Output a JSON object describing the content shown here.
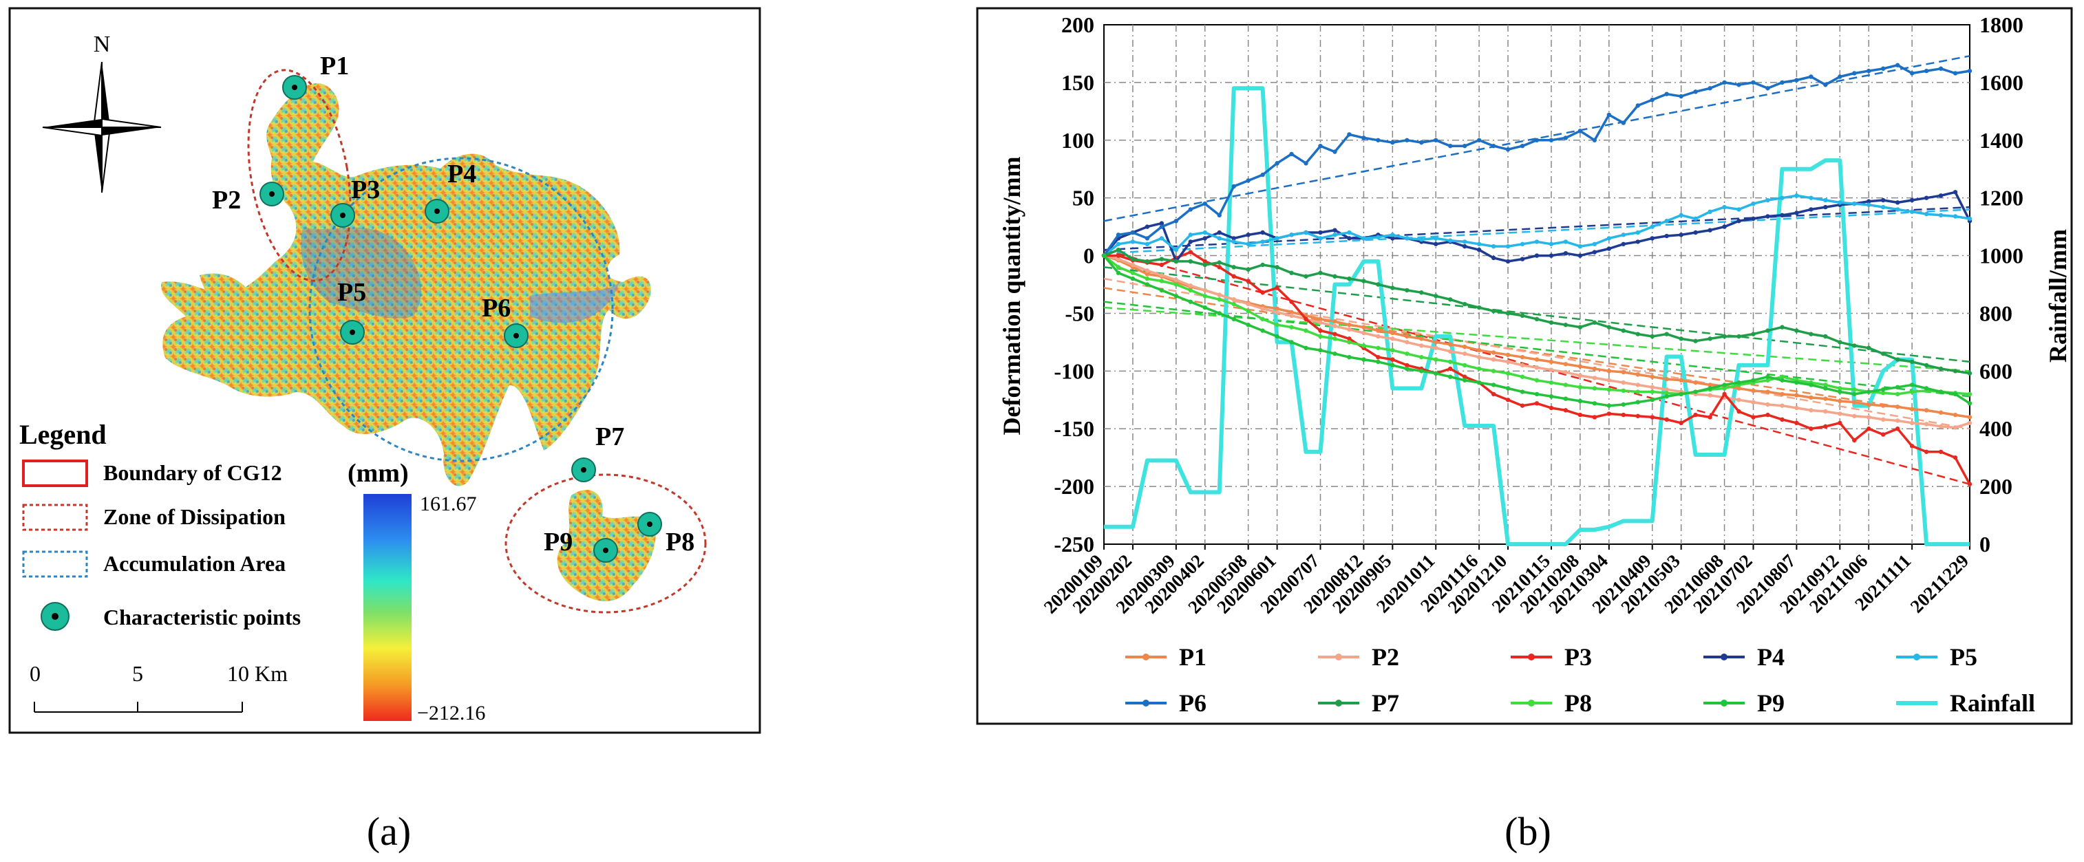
{
  "panel_a": {
    "caption": "(a)",
    "north_label": "N",
    "points": [
      "P1",
      "P2",
      "P3",
      "P4",
      "P5",
      "P6",
      "P7",
      "P8",
      "P9"
    ],
    "legend": {
      "title": "Legend",
      "boundary": "Boundary of CG12",
      "dissipation": "Zone of Dissipation",
      "accumulation": "Accumulation Area",
      "char_points": "Characteristic points"
    },
    "colorbar": {
      "unit": "(mm)",
      "max": "161.67",
      "min": "−212.16"
    },
    "scalebar": {
      "ticks": [
        "0",
        "5",
        "10 Km"
      ]
    },
    "colors": {
      "boundary": "#e02020",
      "dissipation": "#c0392b",
      "accumulation": "#2e86c1",
      "marker": "#1abc9c"
    }
  },
  "panel_b": {
    "caption": "(b)"
  },
  "chart_data": {
    "type": "line",
    "x": [
      "20200109",
      "20200121",
      "20200202",
      "20200214",
      "20200226",
      "20200309",
      "20200321",
      "20200402",
      "20200414",
      "20200426",
      "20200508",
      "20200520",
      "20200601",
      "20200613",
      "20200625",
      "20200707",
      "20200719",
      "20200731",
      "20200812",
      "20200824",
      "20200905",
      "20200917",
      "20200929",
      "20201011",
      "20201023",
      "20201104",
      "20201116",
      "20201128",
      "20201210",
      "20201222",
      "20210103",
      "20210115",
      "20210127",
      "20210208",
      "20210220",
      "20210304",
      "20210316",
      "20210328",
      "20210409",
      "20210421",
      "20210503",
      "20210515",
      "20210527",
      "20210608",
      "20210620",
      "20210702",
      "20210714",
      "20210726",
      "20210807",
      "20210819",
      "20210831",
      "20210912",
      "20210924",
      "20211006",
      "20211018",
      "20211030",
      "20211111",
      "20211123",
      "20211205",
      "20211217",
      "20211229"
    ],
    "x_tick_labels": [
      "20200109",
      "20200202",
      "20200309",
      "20200402",
      "20200508",
      "20200601",
      "20200707",
      "20200812",
      "20200905",
      "20201011",
      "20201116",
      "20201210",
      "20210115",
      "20210208",
      "20210304",
      "20210409",
      "20210503",
      "20210608",
      "20210702",
      "20210807",
      "20210912",
      "20211006",
      "20211111",
      "20211229"
    ],
    "ylabel": "Deformation  quantity/mm",
    "y2label": "Rainfall/mm",
    "ylim": [
      -250,
      200
    ],
    "y_ticks": [
      -250,
      -200,
      -150,
      -100,
      -50,
      0,
      50,
      100,
      150,
      200
    ],
    "y2lim": [
      0,
      1800
    ],
    "y2_ticks": [
      0,
      200,
      400,
      600,
      800,
      1000,
      1200,
      1400,
      1600,
      1800
    ],
    "grid": true,
    "legend_position": "bottom",
    "series": [
      {
        "name": "P1",
        "color": "#f0874a",
        "axis": "left",
        "trend": [
          -28,
          -140
        ],
        "values": [
          0,
          -4,
          -10,
          -16,
          -18,
          -23,
          -27,
          -30,
          -34,
          -38,
          -41,
          -44,
          -46,
          -49,
          -52,
          -55,
          -57,
          -60,
          -62,
          -65,
          -67,
          -70,
          -72,
          -75,
          -77,
          -79,
          -82,
          -84,
          -86,
          -88,
          -90,
          -92,
          -94,
          -96,
          -98,
          -100,
          -101,
          -103,
          -105,
          -107,
          -108,
          -110,
          -112,
          -113,
          -115,
          -117,
          -118,
          -120,
          -121,
          -123,
          -124,
          -126,
          -127,
          -129,
          -130,
          -131,
          -133,
          -134,
          -136,
          -138,
          -140
        ]
      },
      {
        "name": "P2",
        "color": "#f4a58a",
        "axis": "left",
        "trend": [
          -20,
          -150
        ],
        "values": [
          0,
          -3,
          -8,
          -13,
          -17,
          -21,
          -26,
          -30,
          -34,
          -38,
          -42,
          -46,
          -49,
          -52,
          -55,
          -58,
          -61,
          -64,
          -67,
          -70,
          -72,
          -75,
          -78,
          -80,
          -83,
          -85,
          -88,
          -90,
          -92,
          -95,
          -97,
          -99,
          -101,
          -104,
          -106,
          -108,
          -110,
          -112,
          -114,
          -116,
          -118,
          -120,
          -121,
          -123,
          -125,
          -127,
          -129,
          -130,
          -132,
          -134,
          -135,
          -137,
          -139,
          -140,
          -142,
          -143,
          -145,
          -146,
          -148,
          -149,
          -145
        ]
      },
      {
        "name": "P3",
        "color": "#e8281e",
        "axis": "left",
        "trend": [
          5,
          -198
        ],
        "values": [
          0,
          0,
          -4,
          -6,
          -8,
          -2,
          3,
          -5,
          -10,
          -18,
          -22,
          -32,
          -28,
          -40,
          -55,
          -65,
          -68,
          -72,
          -80,
          -88,
          -90,
          -95,
          -98,
          -102,
          -98,
          -105,
          -110,
          -120,
          -125,
          -130,
          -128,
          -132,
          -134,
          -138,
          -140,
          -137,
          -138,
          -139,
          -140,
          -142,
          -145,
          -138,
          -140,
          -120,
          -135,
          -140,
          -138,
          -142,
          -145,
          -150,
          -148,
          -145,
          -160,
          -150,
          -155,
          -150,
          -165,
          -170,
          -170,
          -175,
          -198
        ]
      },
      {
        "name": "P4",
        "color": "#1f3a93",
        "axis": "left",
        "trend": [
          5,
          42
        ],
        "values": [
          0,
          15,
          20,
          25,
          28,
          -5,
          12,
          15,
          20,
          15,
          18,
          20,
          15,
          18,
          20,
          20,
          22,
          15,
          15,
          18,
          15,
          15,
          12,
          10,
          12,
          8,
          5,
          -2,
          -5,
          -3,
          0,
          0,
          2,
          0,
          3,
          6,
          10,
          12,
          15,
          17,
          18,
          20,
          22,
          25,
          30,
          32,
          34,
          35,
          37,
          40,
          42,
          44,
          45,
          47,
          48,
          46,
          48,
          50,
          52,
          55,
          30
        ]
      },
      {
        "name": "P5",
        "color": "#27b6e8",
        "axis": "left",
        "trend": [
          2,
          40
        ],
        "values": [
          0,
          10,
          12,
          10,
          15,
          5,
          18,
          20,
          15,
          12,
          10,
          12,
          15,
          18,
          20,
          15,
          18,
          20,
          15,
          16,
          18,
          15,
          14,
          15,
          13,
          12,
          10,
          8,
          8,
          10,
          12,
          10,
          12,
          8,
          10,
          15,
          18,
          20,
          25,
          30,
          35,
          32,
          38,
          42,
          40,
          45,
          48,
          50,
          52,
          50,
          48,
          46,
          45,
          44,
          42,
          40,
          38,
          36,
          35,
          34,
          32
        ]
      },
      {
        "name": "P6",
        "color": "#1b6fc4",
        "axis": "left",
        "trend": [
          30,
          173
        ],
        "values": [
          0,
          18,
          20,
          15,
          25,
          30,
          40,
          45,
          35,
          60,
          65,
          70,
          80,
          88,
          80,
          95,
          90,
          105,
          102,
          100,
          98,
          100,
          98,
          100,
          95,
          95,
          100,
          95,
          92,
          95,
          100,
          100,
          102,
          108,
          100,
          122,
          115,
          130,
          135,
          140,
          138,
          142,
          145,
          150,
          148,
          150,
          145,
          150,
          152,
          155,
          148,
          155,
          158,
          160,
          162,
          165,
          158,
          160,
          162,
          158,
          160
        ]
      },
      {
        "name": "P7",
        "color": "#1f9e4a",
        "axis": "left",
        "trend": [
          -10,
          -92
        ],
        "values": [
          0,
          5,
          -3,
          -5,
          -3,
          -5,
          -5,
          -8,
          -6,
          -10,
          -12,
          -8,
          -10,
          -15,
          -18,
          -15,
          -18,
          -20,
          -22,
          -25,
          -28,
          -30,
          -32,
          -35,
          -38,
          -42,
          -45,
          -48,
          -50,
          -52,
          -55,
          -58,
          -60,
          -62,
          -58,
          -62,
          -65,
          -68,
          -70,
          -68,
          -72,
          -74,
          -72,
          -70,
          -70,
          -68,
          -65,
          -62,
          -65,
          -68,
          -70,
          -75,
          -78,
          -80,
          -85,
          -90,
          -92,
          -95,
          -98,
          -100,
          -102
        ]
      },
      {
        "name": "P8",
        "color": "#3fdc3f",
        "axis": "left",
        "trend": [
          -45,
          -100
        ],
        "values": [
          0,
          -10,
          -15,
          -20,
          -22,
          -25,
          -30,
          -35,
          -38,
          -42,
          -48,
          -55,
          -60,
          -62,
          -65,
          -70,
          -72,
          -75,
          -78,
          -80,
          -82,
          -85,
          -88,
          -90,
          -92,
          -95,
          -98,
          -100,
          -102,
          -105,
          -108,
          -110,
          -112,
          -114,
          -115,
          -116,
          -117,
          -118,
          -118,
          -119,
          -120,
          -118,
          -116,
          -115,
          -112,
          -110,
          -108,
          -105,
          -108,
          -110,
          -112,
          -115,
          -116,
          -118,
          -119,
          -120,
          -118,
          -117,
          -118,
          -119,
          -120
        ]
      },
      {
        "name": "P9",
        "color": "#22c23a",
        "axis": "left",
        "trend": [
          -40,
          -122
        ],
        "values": [
          0,
          -15,
          -20,
          -25,
          -30,
          -35,
          -40,
          -45,
          -50,
          -55,
          -60,
          -65,
          -70,
          -75,
          -80,
          -82,
          -85,
          -88,
          -90,
          -92,
          -95,
          -98,
          -100,
          -102,
          -105,
          -108,
          -110,
          -112,
          -115,
          -118,
          -120,
          -122,
          -124,
          -126,
          -128,
          -130,
          -129,
          -127,
          -125,
          -122,
          -120,
          -118,
          -115,
          -112,
          -110,
          -108,
          -105,
          -108,
          -110,
          -112,
          -115,
          -118,
          -120,
          -118,
          -116,
          -114,
          -112,
          -115,
          -118,
          -120,
          -128
        ]
      },
      {
        "name": "Rainfall",
        "color": "#3ee3e0",
        "axis": "right",
        "values": [
          60,
          60,
          60,
          290,
          290,
          290,
          180,
          180,
          180,
          1580,
          1580,
          1580,
          700,
          700,
          320,
          320,
          900,
          900,
          980,
          980,
          540,
          540,
          540,
          720,
          720,
          410,
          410,
          410,
          0,
          0,
          0,
          0,
          0,
          50,
          50,
          60,
          80,
          80,
          80,
          650,
          650,
          310,
          310,
          310,
          620,
          620,
          620,
          1300,
          1300,
          1300,
          1330,
          1330,
          480,
          480,
          600,
          640,
          640,
          0,
          0,
          0,
          0
        ]
      }
    ]
  }
}
